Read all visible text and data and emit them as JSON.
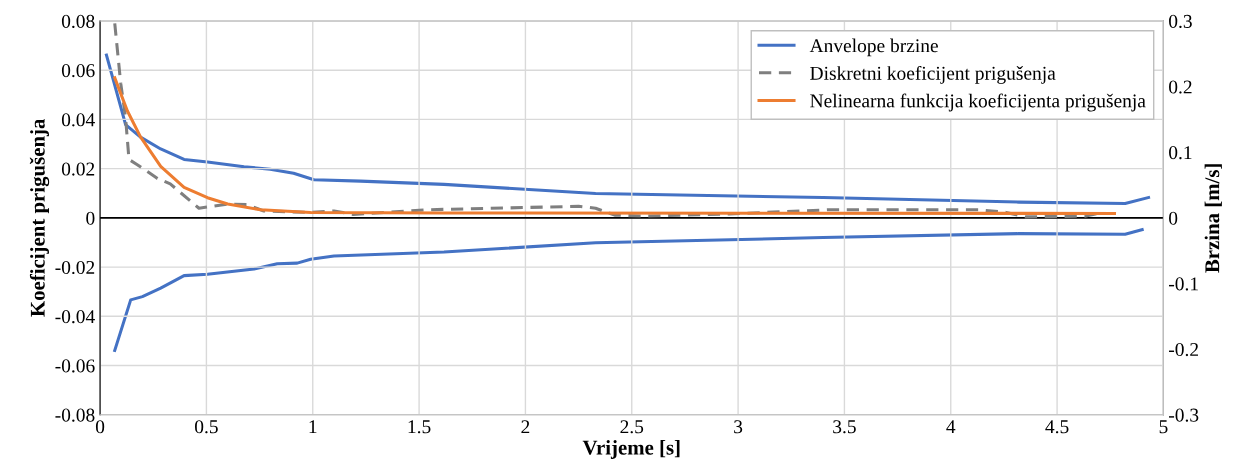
{
  "chart_data": {
    "type": "line",
    "xlabel": "Vrijeme [s]",
    "ylabel": "Koeficijent prigušenja",
    "y2label": "Brzina [m/s]",
    "xlim": [
      0,
      5
    ],
    "xticks": [
      0,
      0.5,
      1,
      1.5,
      2,
      2.5,
      3,
      3.5,
      4,
      4.5,
      5
    ],
    "ylim": [
      -0.08,
      0.08
    ],
    "yticks": [
      -0.08,
      -0.06,
      -0.04,
      -0.02,
      0,
      0.02,
      0.04,
      0.06,
      0.08
    ],
    "y2lim": [
      -0.3,
      0.3
    ],
    "y2ticks": [
      -0.3,
      -0.2,
      -0.1,
      0,
      0.1,
      0.2,
      0.3
    ],
    "grid": true,
    "legend": "top right",
    "marker": "none",
    "ref_lines": [
      {
        "axis": "y",
        "value": 0,
        "color": "#000000"
      }
    ],
    "series": [
      {
        "name": "Anvelope brzine",
        "color": "#4472c4",
        "axis": "y2",
        "line_style": "solid",
        "x": [
          0.03,
          0.12,
          0.19,
          0.285,
          0.395,
          0.505,
          0.677,
          0.8,
          0.91,
          1.006,
          1.225,
          1.617,
          2.33,
          3.4,
          4.32,
          4.82,
          4.93
        ],
        "values": [
          0.248,
          0.142,
          0.123,
          0.105,
          0.089,
          0.085,
          0.078,
          0.074,
          0.068,
          0.058,
          0.056,
          0.051,
          0.037,
          0.031,
          0.024,
          0.022,
          0.031
        ]
      },
      {
        "color": "#4472c4",
        "axis": "y2",
        "line_style": "solid",
        "x": [
          0.069,
          0.144,
          0.199,
          0.285,
          0.395,
          0.505,
          0.724,
          0.833,
          0.927,
          0.99,
          1.1,
          1.617,
          2.33,
          3.4,
          4.32,
          4.82,
          4.9
        ],
        "values": [
          -0.202,
          -0.125,
          -0.12,
          -0.107,
          -0.088,
          -0.086,
          -0.078,
          -0.07,
          -0.069,
          -0.063,
          -0.058,
          -0.052,
          -0.038,
          -0.03,
          -0.024,
          -0.025,
          -0.018
        ]
      },
      {
        "name": "Diskretni koeficijent prigušenja",
        "color": "#7f7f7f",
        "line_style": "dashed",
        "x": [
          0.069,
          0.097,
          0.12,
          0.136,
          0.175,
          0.27,
          0.33,
          0.465,
          0.6,
          0.69,
          0.77,
          0.99,
          1.1,
          1.19,
          1.546,
          2.25,
          2.33,
          2.42,
          2.56,
          2.96,
          3.43,
          4.13,
          4.26,
          4.35,
          4.63,
          4.69
        ],
        "values": [
          0.079,
          0.0547,
          0.0406,
          0.0237,
          0.0216,
          0.016,
          0.0138,
          0.0039,
          0.0056,
          0.0054,
          0.0028,
          0.0022,
          0.0028,
          0.0014,
          0.0033,
          0.0047,
          0.0039,
          0.0011,
          0.0007,
          0.0016,
          0.0033,
          0.0033,
          0.0022,
          0.0004,
          0.0007,
          0.0018
        ]
      },
      {
        "name": "Nelinearna funkcija koeficijenta prigušenja",
        "color": "#ed7d31",
        "line_style": "solid",
        "x": [
          0.069,
          0.128,
          0.19,
          0.285,
          0.395,
          0.505,
          0.6,
          0.755,
          0.99,
          1.617,
          4.77
        ],
        "values": [
          0.0569,
          0.0435,
          0.0329,
          0.0209,
          0.0124,
          0.0082,
          0.0056,
          0.0033,
          0.0022,
          0.002,
          0.0018
        ]
      }
    ]
  }
}
